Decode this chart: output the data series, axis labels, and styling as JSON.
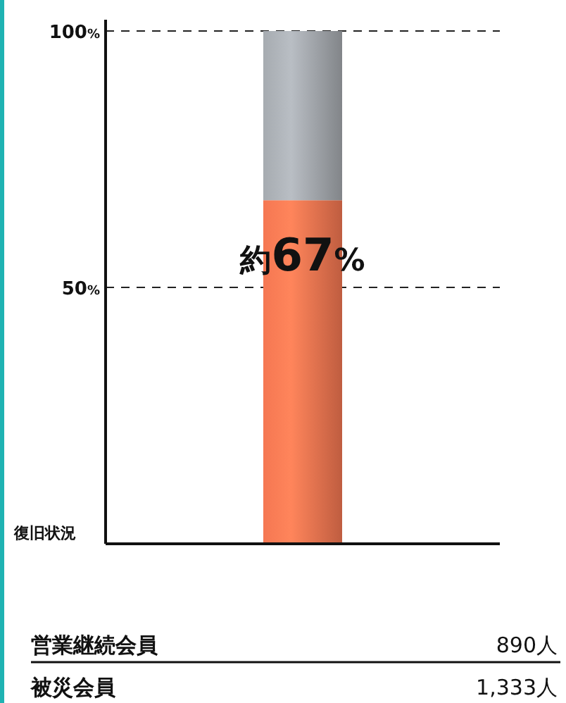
{
  "chart_data": {
    "type": "bar",
    "stacked": true,
    "categories": [
      null
    ],
    "series": [
      {
        "color": "#e46f4c",
        "values": [
          67
        ],
        "value_labels": [
          "約67%"
        ]
      },
      {
        "color": "#9b9fa4",
        "values": [
          33
        ]
      }
    ],
    "ylim": [
      0,
      100
    ],
    "yticks": [
      {
        "value": 50,
        "label": "50%"
      },
      {
        "value": 100,
        "label": "100%"
      }
    ],
    "grid": "y",
    "ylabel": "復旧状況",
    "annotations": [
      "営業継続会員",
      "890人",
      "被災会員",
      "1,333人"
    ]
  }
}
